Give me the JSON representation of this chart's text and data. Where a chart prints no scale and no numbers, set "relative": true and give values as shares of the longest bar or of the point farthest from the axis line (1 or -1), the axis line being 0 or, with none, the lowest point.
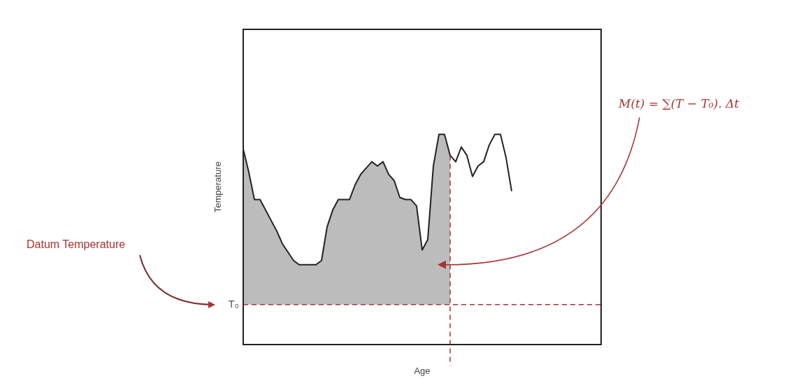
{
  "chart_data": {
    "type": "line",
    "xlabel": "Age",
    "ylabel": "Temperature",
    "relative": true,
    "marker": "none",
    "line_style": "solid",
    "categories": [
      null,
      null,
      null,
      null,
      null,
      null,
      null,
      null,
      null,
      null,
      null,
      null,
      null,
      null,
      null,
      null,
      null,
      null,
      null,
      null,
      null,
      null,
      null,
      null,
      null,
      null,
      null,
      null,
      null,
      null,
      null,
      null,
      null,
      null,
      null,
      null,
      null,
      null,
      null,
      null,
      null,
      null,
      null,
      null,
      null,
      null,
      null,
      null,
      null,
      null,
      null,
      null,
      null,
      null,
      null,
      null,
      null,
      null,
      null,
      null,
      null,
      null,
      null,
      null,
      null
    ],
    "series": [
      {
        "color": "#222222",
        "values": [
          0.93,
          0.82,
          0.69,
          0.69,
          0.64,
          0.59,
          0.54,
          0.48,
          0.44,
          0.4,
          0.38,
          0.38,
          0.38,
          0.38,
          0.4,
          0.56,
          0.64,
          0.69,
          0.69,
          0.69,
          0.76,
          0.81,
          0.84,
          0.87,
          0.85,
          0.87,
          0.81,
          0.78,
          0.7,
          0.69,
          0.69,
          0.66,
          0.45,
          0.5,
          0.85,
          1,
          1,
          0.9,
          0.87,
          0.94,
          0.9,
          0.8,
          0.85,
          0.87,
          0.95,
          1,
          1,
          0.89,
          0.73,
          null,
          null,
          null,
          null,
          null,
          null,
          null,
          null,
          null,
          null,
          null,
          null,
          null,
          null,
          null,
          null
        ],
        "lower": [
          0.19,
          0.19,
          0.19,
          0.19,
          0.19,
          0.19,
          0.19,
          0.19,
          0.19,
          0.19,
          0.19,
          0.19,
          0.19,
          0.19,
          0.19,
          0.19,
          0.19,
          0.19,
          0.19,
          0.19,
          0.19,
          0.19,
          0.19,
          0.19,
          0.19,
          0.19,
          0.19,
          0.19,
          0.19,
          0.19,
          0.19,
          0.19,
          0.19,
          0.19,
          0.19,
          0.19,
          0.19,
          0.19,
          null,
          null,
          null,
          null,
          null,
          null,
          null,
          null,
          null,
          null,
          null,
          null,
          null,
          null,
          null,
          null,
          null,
          null,
          null,
          null,
          null,
          null,
          null,
          null,
          null,
          null,
          null
        ],
        "upper": [
          0.93,
          0.82,
          0.69,
          0.69,
          0.64,
          0.59,
          0.54,
          0.48,
          0.44,
          0.4,
          0.38,
          0.38,
          0.38,
          0.38,
          0.4,
          0.56,
          0.64,
          0.69,
          0.69,
          0.69,
          0.76,
          0.81,
          0.84,
          0.87,
          0.85,
          0.87,
          0.81,
          0.78,
          0.7,
          0.69,
          0.69,
          0.66,
          0.45,
          0.5,
          0.85,
          1,
          1,
          0.9,
          null,
          null,
          null,
          null,
          null,
          null,
          null,
          null,
          null,
          null,
          null,
          null,
          null,
          null,
          null,
          null,
          null,
          null,
          null,
          null,
          null,
          null,
          null,
          null,
          null,
          null,
          null
        ]
      }
    ],
    "ref_lines": [
      {
        "axis": "y",
        "value": 0.19,
        "label": "T₀",
        "color": "#a83232",
        "line_style": "dashed"
      }
    ],
    "annotations": [
      "Datum Temperature",
      "M(t) = ∑(T − T₀). Δt"
    ]
  }
}
